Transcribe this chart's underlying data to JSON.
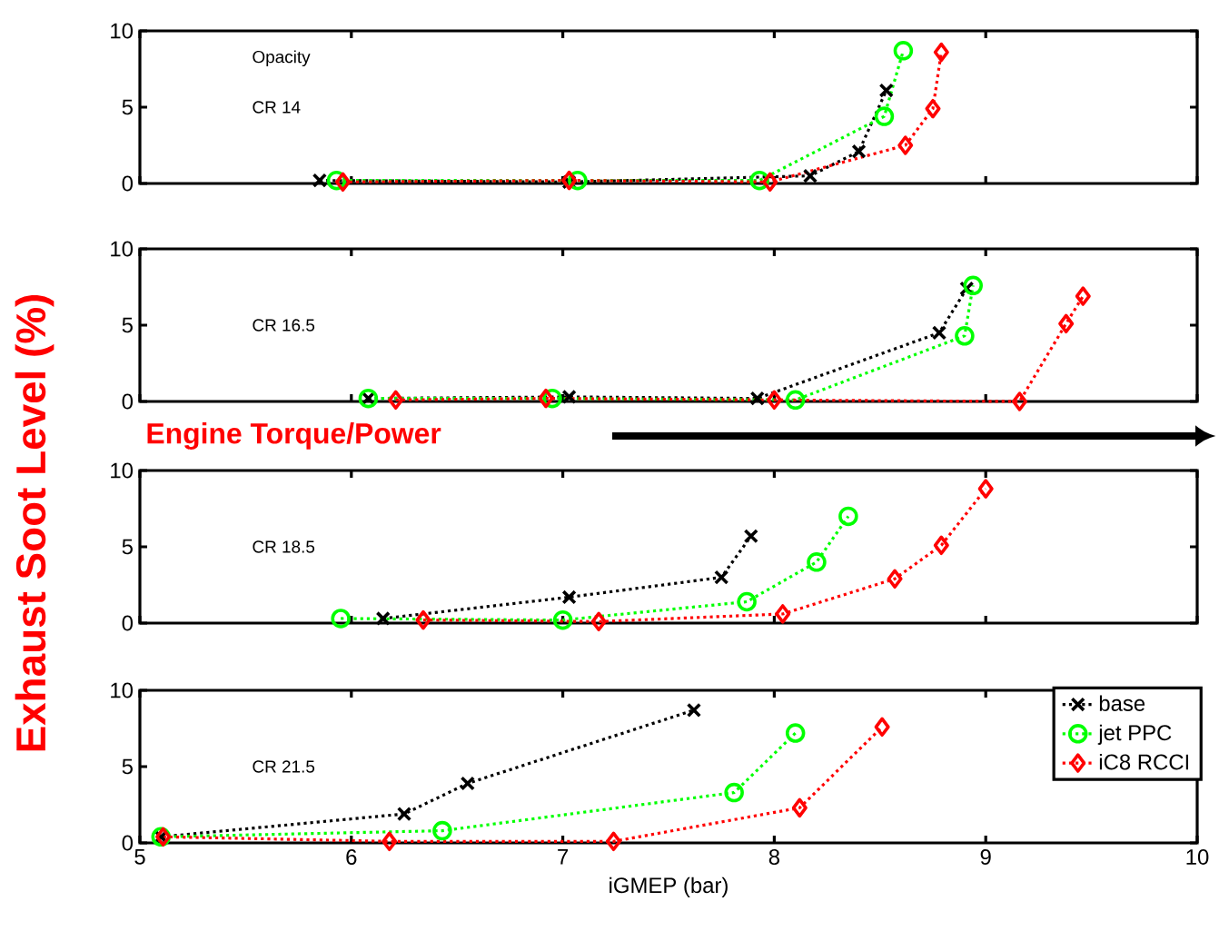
{
  "chart_data": [
    {
      "type": "line",
      "ylabel": "Exhaust Soot Level (%)",
      "annotations": [
        "Opacity",
        "CR 14"
      ],
      "xlim": [
        5,
        10
      ],
      "xticks": [
        5,
        6,
        7,
        8,
        9,
        10
      ],
      "ylim": [
        0,
        10
      ],
      "yticks": [
        0,
        5,
        10
      ],
      "tick_labels": "y",
      "line_style": "dotted",
      "series": [
        {
          "color": "#000000",
          "marker": "cross",
          "x": [
            5.85,
            7.03,
            8.17,
            8.4,
            8.53
          ],
          "values": [
            0.2,
            0.1,
            0.5,
            2.1,
            6.1
          ]
        },
        {
          "color": "#00ff00",
          "marker": "circle",
          "x": [
            5.93,
            7.07,
            7.93,
            8.52,
            8.61
          ],
          "values": [
            0.2,
            0.2,
            0.2,
            4.4,
            8.7
          ]
        },
        {
          "color": "#ff0000",
          "marker": "diamond",
          "x": [
            5.96,
            7.03,
            7.98,
            8.62,
            8.75,
            8.79
          ],
          "values": [
            0.1,
            0.2,
            0.1,
            2.5,
            4.9,
            8.6
          ]
        }
      ]
    },
    {
      "type": "line",
      "annotations": [
        "CR 16.5",
        "Engine Torque/Power"
      ],
      "xlim": [
        5,
        10
      ],
      "xticks": [
        5,
        6,
        7,
        8,
        9,
        10
      ],
      "ylim": [
        0,
        10
      ],
      "yticks": [
        0,
        5,
        10
      ],
      "tick_labels": "y",
      "line_style": "dotted",
      "series": [
        {
          "color": "#000000",
          "marker": "cross",
          "x": [
            6.08,
            7.03,
            7.92,
            8.78,
            8.91
          ],
          "values": [
            0.2,
            0.3,
            0.2,
            4.5,
            7.4
          ]
        },
        {
          "color": "#00ff00",
          "marker": "circle",
          "x": [
            6.08,
            6.95,
            8.1,
            8.9,
            8.94
          ],
          "values": [
            0.2,
            0.2,
            0.1,
            4.3,
            7.6
          ]
        },
        {
          "color": "#ff0000",
          "marker": "diamond",
          "x": [
            6.21,
            6.92,
            8.0,
            9.16,
            9.38,
            9.46
          ],
          "values": [
            0.1,
            0.2,
            0.1,
            0.0,
            5.1,
            6.9
          ]
        }
      ]
    },
    {
      "type": "line",
      "annotations": [
        "CR 18.5"
      ],
      "xlim": [
        5,
        10
      ],
      "xticks": [
        5,
        6,
        7,
        8,
        9,
        10
      ],
      "ylim": [
        0,
        10
      ],
      "yticks": [
        0,
        5,
        10
      ],
      "tick_labels": "y",
      "line_style": "dotted",
      "series": [
        {
          "color": "#000000",
          "marker": "cross",
          "x": [
            6.15,
            7.03,
            7.75,
            7.89
          ],
          "values": [
            0.3,
            1.7,
            3.0,
            5.7
          ]
        },
        {
          "color": "#00ff00",
          "marker": "circle",
          "x": [
            5.95,
            7.0,
            7.87,
            8.2,
            8.35
          ],
          "values": [
            0.3,
            0.2,
            1.4,
            4.0,
            7.0
          ]
        },
        {
          "color": "#ff0000",
          "marker": "diamond",
          "x": [
            6.34,
            7.17,
            8.04,
            8.57,
            8.79,
            9.0
          ],
          "values": [
            0.2,
            0.1,
            0.6,
            2.9,
            5.1,
            8.8
          ]
        }
      ]
    },
    {
      "type": "line",
      "xlabel": "iGMEP (bar)",
      "annotations": [
        "CR 21.5"
      ],
      "xlim": [
        5,
        10
      ],
      "xticks": [
        5,
        6,
        7,
        8,
        9,
        10
      ],
      "ylim": [
        0,
        10
      ],
      "yticks": [
        0,
        5,
        10
      ],
      "line_style": "dotted",
      "legend": "top right",
      "series": [
        {
          "name": "base",
          "color": "#000000",
          "marker": "cross",
          "x": [
            5.1,
            6.25,
            6.55,
            7.62
          ],
          "values": [
            0.4,
            1.9,
            3.9,
            8.7
          ]
        },
        {
          "name": "jet PPC",
          "color": "#00ff00",
          "marker": "circle",
          "x": [
            5.1,
            6.43,
            7.81,
            8.1
          ],
          "values": [
            0.4,
            0.8,
            3.3,
            7.2
          ]
        },
        {
          "name": "iC8 RCCI",
          "color": "#ff0000",
          "marker": "diamond",
          "x": [
            5.11,
            6.18,
            7.24,
            8.12,
            8.51
          ],
          "values": [
            0.4,
            0.1,
            0.1,
            2.3,
            7.6
          ]
        }
      ]
    }
  ]
}
